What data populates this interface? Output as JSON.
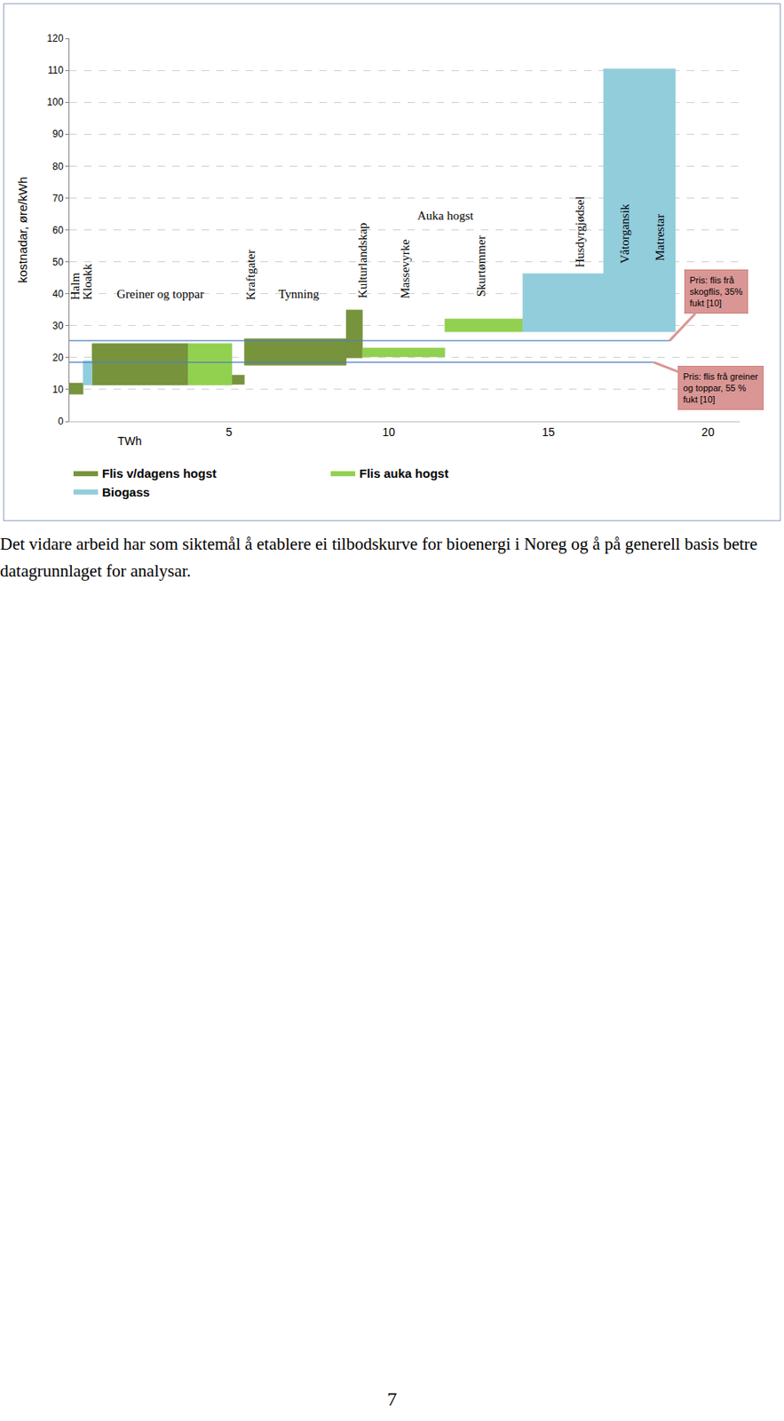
{
  "chart_data": {
    "type": "bar",
    "y_label": "kostnadar, øre/kWh",
    "x_label": "TWh",
    "xlim": [
      0,
      21
    ],
    "xticks": [
      5,
      10,
      15,
      20
    ],
    "ylim": [
      0,
      120
    ],
    "yticks": [
      0,
      10,
      20,
      30,
      40,
      50,
      60,
      70,
      80,
      90,
      100,
      110,
      120
    ],
    "grid": true,
    "legend": "bottom",
    "series": [
      {
        "name": "Flis v/dagens hogst",
        "color": "#77933c",
        "values": [
          {
            "x": [
              0,
              0.43
            ],
            "y": [
              8.5,
              12
            ]
          },
          {
            "x": [
              0.71,
              3.72
            ],
            "y": [
              11.4,
              24.4
            ]
          },
          {
            "x": [
              5.09,
              5.48
            ],
            "y": [
              11.6,
              14.5
            ]
          },
          {
            "x": [
              5.48,
              8.67
            ],
            "y": [
              17.6,
              25.9
            ]
          },
          {
            "x": [
              8.67,
              9.18
            ],
            "y": [
              19.9,
              34.9
            ]
          }
        ]
      },
      {
        "name": "Flis auka hogst",
        "color": "#92d050",
        "values": [
          {
            "x": [
              3.72,
              5.09
            ],
            "y": [
              11.4,
              24.4
            ]
          },
          {
            "x": [
              9.18,
              11.76
            ],
            "y": [
              20.2,
              23.0
            ]
          },
          {
            "x": [
              11.76,
              14.2
            ],
            "y": [
              28.1,
              32.1
            ]
          }
        ]
      },
      {
        "name": "Biogass",
        "color": "#92cddc",
        "values": [
          {
            "x": [
              0.43,
              0.71
            ],
            "y": [
              11.4,
              19
            ]
          },
          {
            "x": [
              14.2,
              16.73
            ],
            "y": [
              28.1,
              46.3
            ]
          },
          {
            "x": [
              16.73,
              18.98
            ],
            "y": [
              28.1,
              110.5
            ]
          }
        ]
      }
    ],
    "vertical_annotations": [
      {
        "text": "Halm",
        "x": 0.2,
        "y": 37.5
      },
      {
        "text": "Kloakk",
        "x": 0.57,
        "y": 37.5
      },
      {
        "text": "Kraftgater",
        "x": 5.68,
        "y": 37.5
      },
      {
        "text": "Kulturlandskap",
        "x": 9.2,
        "y": 38
      },
      {
        "text": "Massevyrke",
        "x": 10.5,
        "y": 38
      },
      {
        "text": "Skurtømmer",
        "x": 12.9,
        "y": 38.5
      },
      {
        "text": "Husdyrgjødsel",
        "x": 16.0,
        "y": 47.7
      },
      {
        "text": "Våtorgansik",
        "x": 17.4,
        "y": 49
      },
      {
        "text": "Matrestar",
        "x": 18.5,
        "y": 49.7
      }
    ],
    "annotations": [
      {
        "text": "Greiner og toppar",
        "x": 2.84,
        "y": 40
      },
      {
        "text": "Tynning",
        "x": 7.2,
        "y": 40
      },
      {
        "text": "Auka hogst",
        "x": 11.8,
        "y": 64.5
      }
    ],
    "reference_lines": [
      {
        "value": 25.3,
        "color": "#4f81bd",
        "label": "Pris: flis frå\nskogflis, 35%\nfukt [10]",
        "x": 18.8,
        "label_x": 20.25,
        "label_y": 40.6
      },
      {
        "value": 18.5,
        "color": "#4f81bd",
        "label": "Pris: flis frå greiner\nog toppar, 55 %\nfukt [10]",
        "x": 18.3,
        "label_x": 20.4,
        "label_y": 10.5
      }
    ]
  },
  "document": {
    "paragraph": "Det vidare arbeid har som siktemål å etablere ei tilbodskurve for bioenergi i Noreg og å på generell basis betre datagrunnlaget for analysar.",
    "page_number": "7"
  }
}
